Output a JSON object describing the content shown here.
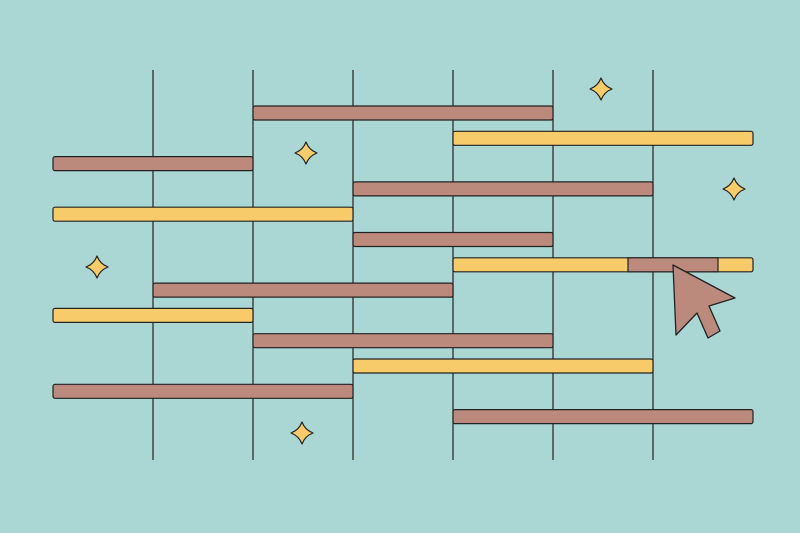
{
  "colors": {
    "background": "#aad6d4",
    "bar_rose": "#bc8a7c",
    "bar_yellow": "#f7cb6a",
    "outline": "#222222",
    "sparkle": "#f7cb6a",
    "cursor": "#bc8a7c"
  },
  "timeline": {
    "columns": 7,
    "rows": [
      {
        "start": 2,
        "end": 5,
        "color": "rose"
      },
      {
        "start": 4,
        "end": 7,
        "color": "yellow"
      },
      {
        "start": 0,
        "end": 2,
        "color": "rose"
      },
      {
        "start": 3,
        "end": 6,
        "color": "rose"
      },
      {
        "start": 0,
        "end": 3,
        "color": "yellow"
      },
      {
        "start": 3,
        "end": 5,
        "color": "rose"
      },
      {
        "start": 4,
        "end": 7,
        "color": "yellow",
        "highlight_start": 5.75,
        "highlight_end": 6.65
      },
      {
        "start": 1,
        "end": 4,
        "color": "rose"
      },
      {
        "start": 0,
        "end": 2,
        "color": "yellow"
      },
      {
        "start": 2,
        "end": 5,
        "color": "rose"
      },
      {
        "start": 3,
        "end": 6,
        "color": "yellow"
      },
      {
        "start": 0,
        "end": 3,
        "color": "rose"
      },
      {
        "start": 4,
        "end": 7,
        "color": "rose"
      }
    ]
  },
  "icons": {
    "sparkle": "sparkle-icon",
    "cursor": "pointer-cursor-icon"
  }
}
